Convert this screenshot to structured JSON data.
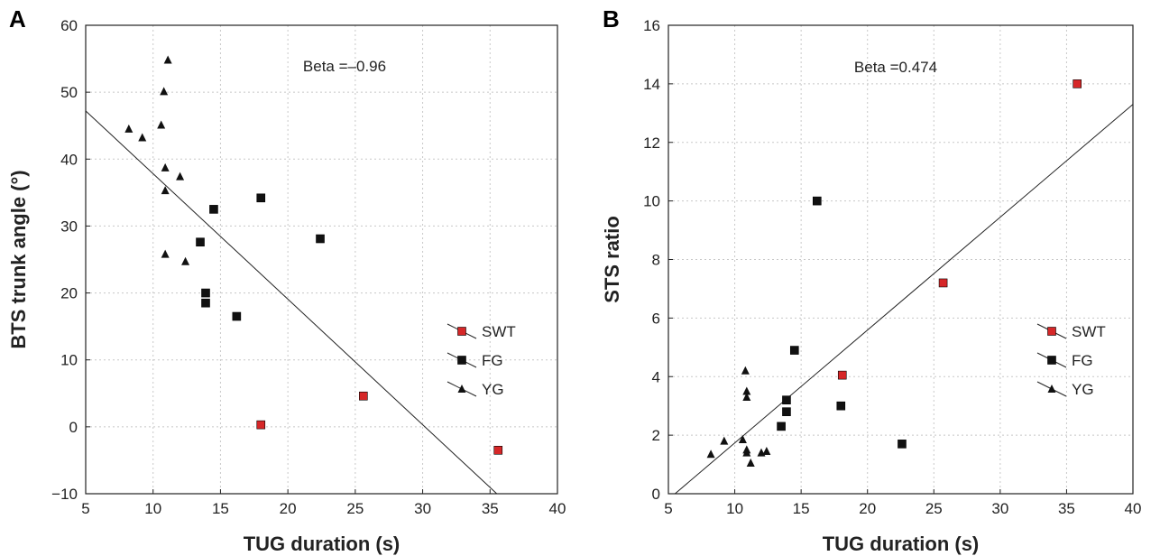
{
  "chart_data": [
    {
      "type": "scatter",
      "panel_label": "A",
      "xlabel": "TUG duration (s)",
      "ylabel": "BTS trunk angle (°)",
      "xlim": [
        5,
        40
      ],
      "ylim": [
        -10,
        60
      ],
      "xticks": [
        5,
        10,
        15,
        20,
        25,
        30,
        35,
        40
      ],
      "yticks": [
        -10,
        0,
        10,
        20,
        30,
        40,
        50,
        60
      ],
      "ytick_labels": [
        "−10",
        "0",
        "10",
        "20",
        "30",
        "40",
        "50",
        "60"
      ],
      "grid": true,
      "annotation": "Beta =–0.96",
      "regression_line": [
        [
          5,
          47.2
        ],
        [
          35.5,
          -10
        ]
      ],
      "legend_position": "right",
      "series": [
        {
          "name": "SWT",
          "marker": "square",
          "color": "#d62728",
          "points": [
            [
              18,
              0.3
            ],
            [
              25.6,
              4.6
            ],
            [
              35.6,
              -3.5
            ]
          ]
        },
        {
          "name": "FG",
          "marker": "square",
          "color": "#111111",
          "points": [
            [
              18,
              34.2
            ],
            [
              14.5,
              32.5
            ],
            [
              13.5,
              27.6
            ],
            [
              22.4,
              28.1
            ],
            [
              13.9,
              20.0
            ],
            [
              13.9,
              18.5
            ],
            [
              16.2,
              16.5
            ]
          ]
        },
        {
          "name": "YG",
          "marker": "triangle",
          "color": "#111111",
          "points": [
            [
              11.1,
              54.8
            ],
            [
              10.8,
              50.1
            ],
            [
              10.6,
              45.1
            ],
            [
              8.2,
              44.5
            ],
            [
              9.2,
              43.2
            ],
            [
              10.9,
              38.7
            ],
            [
              12,
              37.4
            ],
            [
              10.9,
              35.3
            ],
            [
              10.9,
              25.8
            ],
            [
              12.4,
              24.7
            ]
          ]
        }
      ]
    },
    {
      "type": "scatter",
      "panel_label": "B",
      "xlabel": "TUG duration (s)",
      "ylabel": "STS ratio",
      "xlim": [
        5,
        40
      ],
      "ylim": [
        0,
        16
      ],
      "xticks": [
        5,
        10,
        15,
        20,
        25,
        30,
        35,
        40
      ],
      "yticks": [
        0,
        2,
        4,
        6,
        8,
        10,
        12,
        14,
        16
      ],
      "ytick_labels": [
        "0",
        "2",
        "4",
        "6",
        "8",
        "10",
        "12",
        "14",
        "16"
      ],
      "grid": true,
      "annotation": "Beta =0.474",
      "regression_line": [
        [
          5.5,
          0
        ],
        [
          40,
          13.3
        ]
      ],
      "legend_position": "right",
      "series": [
        {
          "name": "SWT",
          "marker": "square",
          "color": "#d62728",
          "points": [
            [
              35.8,
              14.0
            ],
            [
              25.7,
              7.2
            ],
            [
              18.1,
              4.05
            ]
          ]
        },
        {
          "name": "FG",
          "marker": "square",
          "color": "#111111",
          "points": [
            [
              16.2,
              10.0
            ],
            [
              14.5,
              4.9
            ],
            [
              13.9,
              3.2
            ],
            [
              13.9,
              2.8
            ],
            [
              13.5,
              2.3
            ],
            [
              18,
              3.0
            ],
            [
              22.6,
              1.7
            ]
          ]
        },
        {
          "name": "YG",
          "marker": "triangle",
          "color": "#111111",
          "points": [
            [
              10.8,
              4.2
            ],
            [
              10.9,
              3.5
            ],
            [
              10.9,
              3.3
            ],
            [
              10.6,
              1.85
            ],
            [
              9.2,
              1.8
            ],
            [
              8.2,
              1.35
            ],
            [
              10.9,
              1.5
            ],
            [
              10.9,
              1.4
            ],
            [
              12,
              1.4
            ],
            [
              12.4,
              1.45
            ],
            [
              11.2,
              1.05
            ]
          ]
        }
      ]
    }
  ]
}
